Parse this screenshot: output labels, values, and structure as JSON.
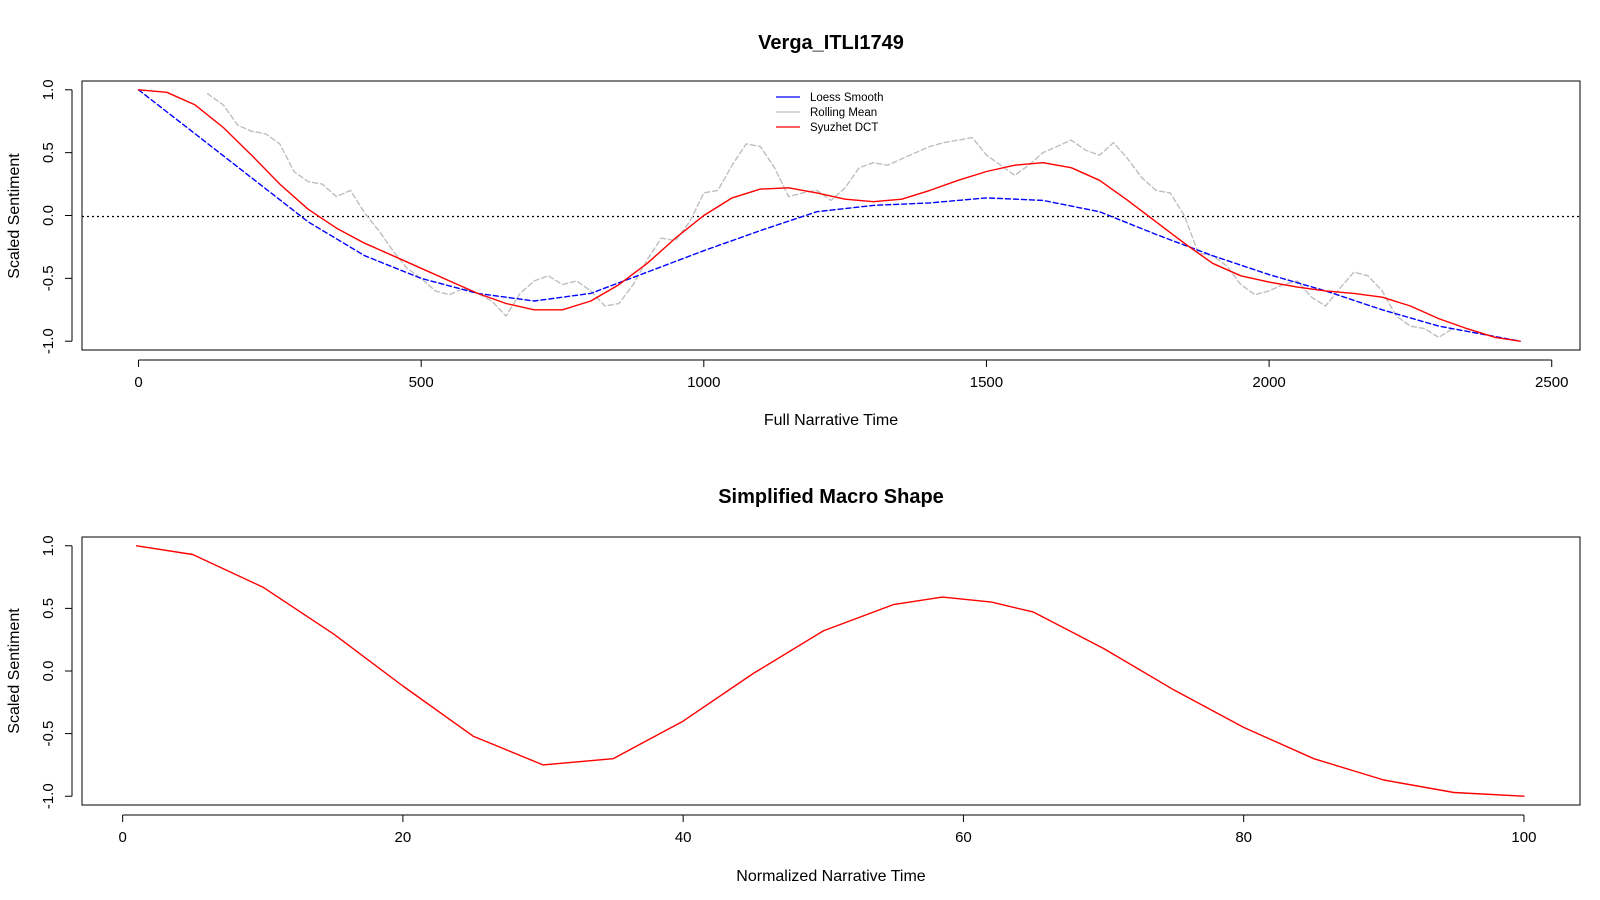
{
  "chart_data": [
    {
      "type": "line",
      "title": "Verga_ITLI1749",
      "xlabel": "Full Narrative Time",
      "ylabel": "Scaled Sentiment",
      "xlim": [
        -100,
        2550
      ],
      "ylim": [
        -1.07,
        1.07
      ],
      "xticks": [
        0,
        500,
        1000,
        1500,
        2000,
        2500
      ],
      "yticks": [
        -1.0,
        -0.5,
        0.0,
        0.5,
        1.0
      ],
      "xtick_labels": [
        "0",
        "500",
        "1000",
        "1500",
        "2000",
        "2500"
      ],
      "ytick_labels": [
        "-1.0",
        "-0.5",
        "0.0",
        "0.5",
        "1.0"
      ],
      "reference_line": {
        "y": 0,
        "style": "dotted"
      },
      "legend": {
        "position": "top-center",
        "entries": [
          {
            "label": "Loess Smooth",
            "color": "#0000ff"
          },
          {
            "label": "Rolling Mean",
            "color": "#bebebe"
          },
          {
            "label": "Syuzhet DCT",
            "color": "#ff0000"
          }
        ]
      },
      "series": [
        {
          "name": "Rolling Mean",
          "color": "#bebebe",
          "style": "dashed",
          "x": [
            122,
            150,
            175,
            200,
            225,
            250,
            275,
            300,
            325,
            350,
            375,
            400,
            425,
            450,
            475,
            500,
            525,
            550,
            575,
            600,
            625,
            650,
            675,
            700,
            725,
            750,
            775,
            800,
            825,
            850,
            875,
            900,
            925,
            950,
            975,
            1000,
            1025,
            1050,
            1075,
            1100,
            1125,
            1150,
            1175,
            1200,
            1225,
            1250,
            1275,
            1300,
            1325,
            1350,
            1375,
            1400,
            1425,
            1450,
            1475,
            1500,
            1525,
            1550,
            1575,
            1600,
            1625,
            1650,
            1675,
            1700,
            1725,
            1750,
            1775,
            1800,
            1825,
            1850,
            1875,
            1900,
            1925,
            1950,
            1975,
            2000,
            2025,
            2050,
            2075,
            2100,
            2125,
            2150,
            2175,
            2200,
            2225,
            2250,
            2275,
            2300,
            2325
          ],
          "values": [
            0.97,
            0.88,
            0.72,
            0.67,
            0.65,
            0.57,
            0.35,
            0.27,
            0.25,
            0.15,
            0.2,
            0.02,
            -0.12,
            -0.28,
            -0.42,
            -0.5,
            -0.6,
            -0.63,
            -0.58,
            -0.62,
            -0.68,
            -0.8,
            -0.62,
            -0.52,
            -0.48,
            -0.55,
            -0.52,
            -0.6,
            -0.72,
            -0.7,
            -0.55,
            -0.35,
            -0.18,
            -0.2,
            -0.05,
            0.18,
            0.2,
            0.4,
            0.57,
            0.55,
            0.38,
            0.15,
            0.18,
            0.2,
            0.12,
            0.22,
            0.38,
            0.42,
            0.4,
            0.45,
            0.5,
            0.55,
            0.58,
            0.6,
            0.62,
            0.48,
            0.4,
            0.32,
            0.4,
            0.5,
            0.55,
            0.6,
            0.52,
            0.48,
            0.58,
            0.45,
            0.3,
            0.2,
            0.18,
            0.0,
            -0.3,
            -0.32,
            -0.4,
            -0.55,
            -0.63,
            -0.6,
            -0.55,
            -0.52,
            -0.65,
            -0.72,
            -0.58,
            -0.45,
            -0.48,
            -0.6,
            -0.8,
            -0.88,
            -0.9,
            -0.97,
            -0.9
          ]
        },
        {
          "name": "Loess Smooth",
          "color": "#0000ff",
          "style": "dashed",
          "x": [
            0,
            100,
            200,
            300,
            400,
            500,
            600,
            700,
            800,
            900,
            1000,
            1100,
            1200,
            1300,
            1400,
            1500,
            1600,
            1700,
            1800,
            1900,
            2000,
            2100,
            2200,
            2300,
            2444
          ],
          "values": [
            1.0,
            0.65,
            0.3,
            -0.05,
            -0.32,
            -0.5,
            -0.62,
            -0.68,
            -0.62,
            -0.45,
            -0.28,
            -0.12,
            0.03,
            0.08,
            0.1,
            0.14,
            0.12,
            0.03,
            -0.15,
            -0.32,
            -0.47,
            -0.6,
            -0.75,
            -0.88,
            -1.0
          ]
        },
        {
          "name": "Syuzhet DCT",
          "color": "#ff0000",
          "style": "solid",
          "x": [
            0,
            50,
            100,
            150,
            200,
            250,
            300,
            350,
            400,
            450,
            500,
            550,
            600,
            650,
            700,
            750,
            800,
            850,
            900,
            950,
            1000,
            1050,
            1100,
            1150,
            1200,
            1250,
            1300,
            1350,
            1400,
            1450,
            1500,
            1550,
            1600,
            1650,
            1700,
            1750,
            1800,
            1850,
            1900,
            1950,
            2000,
            2050,
            2100,
            2150,
            2200,
            2250,
            2300,
            2350,
            2400,
            2444
          ],
          "values": [
            1.0,
            0.98,
            0.88,
            0.7,
            0.48,
            0.25,
            0.05,
            -0.1,
            -0.22,
            -0.32,
            -0.42,
            -0.52,
            -0.62,
            -0.7,
            -0.75,
            -0.75,
            -0.68,
            -0.55,
            -0.38,
            -0.18,
            0.0,
            0.14,
            0.21,
            0.22,
            0.18,
            0.13,
            0.11,
            0.13,
            0.2,
            0.28,
            0.35,
            0.4,
            0.42,
            0.38,
            0.28,
            0.12,
            -0.05,
            -0.22,
            -0.38,
            -0.48,
            -0.53,
            -0.57,
            -0.6,
            -0.62,
            -0.65,
            -0.72,
            -0.82,
            -0.9,
            -0.97,
            -1.0
          ]
        }
      ]
    },
    {
      "type": "line",
      "title": "Simplified Macro Shape",
      "xlabel": "Normalized Narrative Time",
      "ylabel": "Scaled Sentiment",
      "xlim": [
        -2.9,
        104
      ],
      "ylim": [
        -1.07,
        1.07
      ],
      "xticks": [
        0,
        20,
        40,
        60,
        80,
        100
      ],
      "yticks": [
        -1.0,
        -0.5,
        0.0,
        0.5,
        1.0
      ],
      "xtick_labels": [
        "0",
        "20",
        "40",
        "60",
        "80",
        "100"
      ],
      "ytick_labels": [
        "-1.0",
        "-0.5",
        "0.0",
        "0.5",
        "1.0"
      ],
      "series": [
        {
          "name": "Syuzhet DCT",
          "color": "#ff0000",
          "style": "solid",
          "x": [
            1,
            5,
            10,
            15,
            20,
            25,
            30,
            35,
            40,
            45,
            50,
            55,
            58.5,
            62,
            65,
            70,
            75,
            80,
            85,
            90,
            95,
            100
          ],
          "values": [
            1.0,
            0.93,
            0.67,
            0.3,
            -0.12,
            -0.52,
            -0.75,
            -0.7,
            -0.4,
            -0.02,
            0.32,
            0.53,
            0.59,
            0.55,
            0.47,
            0.18,
            -0.15,
            -0.45,
            -0.7,
            -0.87,
            -0.97,
            -1.0
          ]
        }
      ]
    }
  ]
}
